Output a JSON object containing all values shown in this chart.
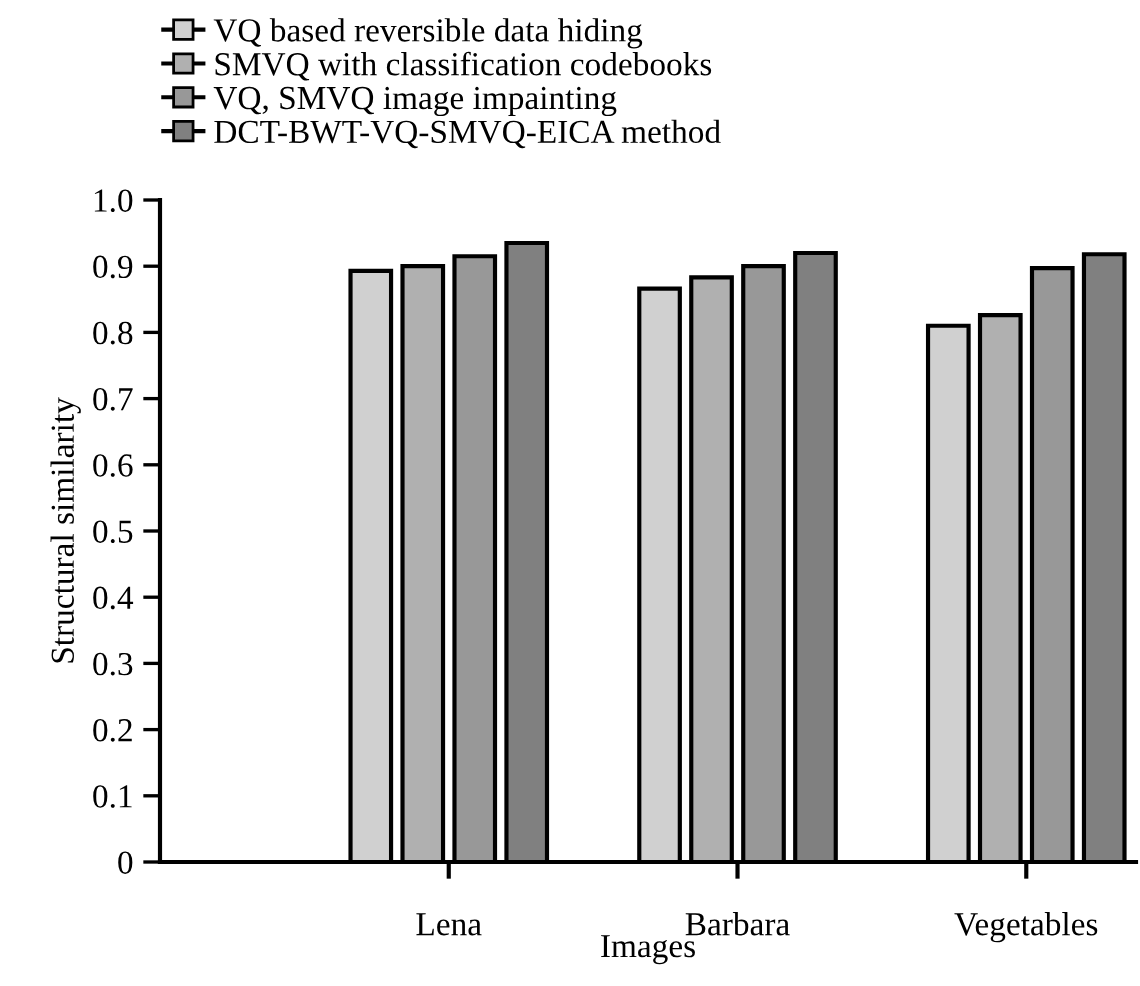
{
  "chart_data": {
    "type": "bar",
    "xlabel": "Images",
    "ylabel": "Structural similarity",
    "categories": [
      "Lena",
      "Barbara",
      "Vegetables"
    ],
    "series": [
      {
        "name": "VQ based reversible data hiding",
        "color": "#d0d0d0",
        "values": [
          0.893,
          0.866,
          0.81
        ]
      },
      {
        "name": "SMVQ with classification codebooks",
        "color": "#b0b0b0",
        "values": [
          0.9,
          0.883,
          0.826
        ]
      },
      {
        "name": "VQ, SMVQ image impainting",
        "color": "#989898",
        "values": [
          0.915,
          0.9,
          0.897
        ]
      },
      {
        "name": "DCT-BWT-VQ-SMVQ-EICA method",
        "color": "#808080",
        "values": [
          0.935,
          0.92,
          0.918
        ]
      }
    ],
    "ylim": [
      0,
      1.0
    ],
    "yticks": [
      0,
      0.1,
      0.2,
      0.3,
      0.4,
      0.5,
      0.6,
      0.7,
      0.8,
      0.9,
      {
        "value": 1.0,
        "label": "1.0"
      }
    ],
    "grid": false,
    "legend": "top left",
    "marker": "square"
  }
}
